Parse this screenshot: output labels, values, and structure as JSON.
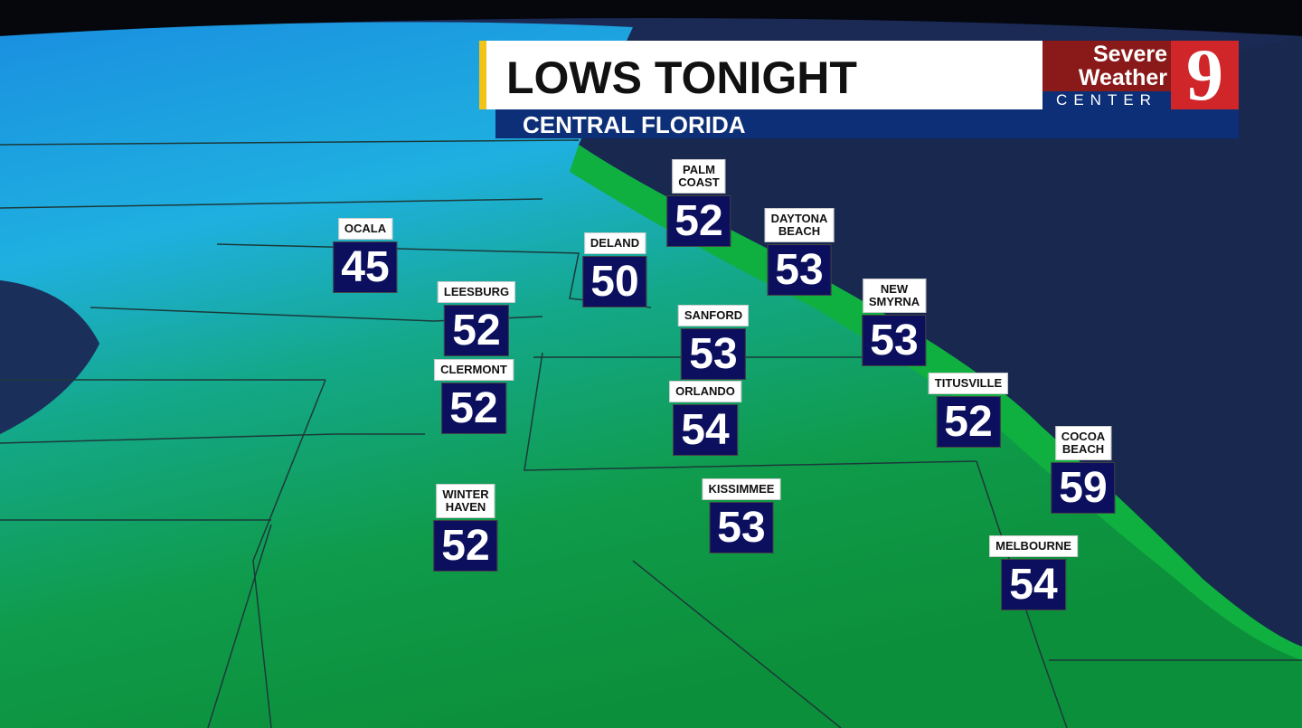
{
  "header": {
    "title": "LOWS TONIGHT",
    "subtitle": "CENTRAL FLORIDA"
  },
  "logo": {
    "line1": "Severe",
    "line2": "Weather",
    "line3": "CENTER",
    "channel": "9"
  },
  "colors": {
    "temp_box": "#0c0f5e",
    "header_blue": "#0d2f78",
    "accent_yellow": "#f2c318",
    "logo_red": "#d0262a",
    "ocean": "#18284e",
    "land_cool": "#1fa8d8",
    "land_warm": "#0f9b3c"
  },
  "cities": [
    {
      "name": "OCALA",
      "temp": "45"
    },
    {
      "name": "PALM\nCOAST",
      "temp": "52"
    },
    {
      "name": "DELAND",
      "temp": "50"
    },
    {
      "name": "DAYTONA\nBEACH",
      "temp": "53"
    },
    {
      "name": "LEESBURG",
      "temp": "52"
    },
    {
      "name": "SANFORD",
      "temp": "53"
    },
    {
      "name": "NEW\nSMYRNA",
      "temp": "53"
    },
    {
      "name": "CLERMONT",
      "temp": "52"
    },
    {
      "name": "ORLANDO",
      "temp": "54"
    },
    {
      "name": "TITUSVILLE",
      "temp": "52"
    },
    {
      "name": "COCOA\nBEACH",
      "temp": "59"
    },
    {
      "name": "WINTER\nHAVEN",
      "temp": "52"
    },
    {
      "name": "KISSIMMEE",
      "temp": "53"
    },
    {
      "name": "MELBOURNE",
      "temp": "54"
    }
  ]
}
